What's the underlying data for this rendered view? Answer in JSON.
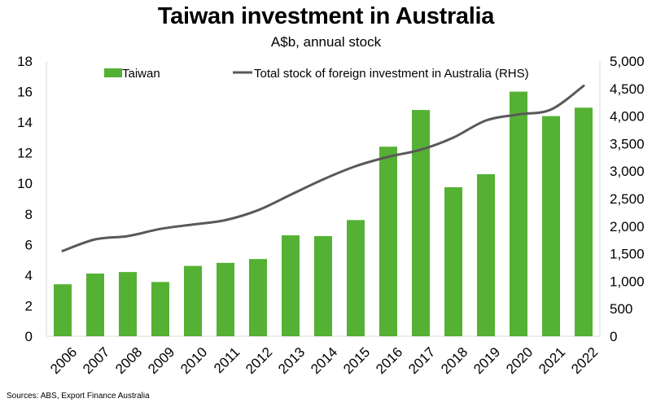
{
  "colors": {
    "bar": "#55b133",
    "line": "#595959",
    "gridline": "#d9d9d9"
  },
  "chart_data": {
    "type": "bar",
    "title": "Taiwan investment in Australia",
    "subtitle": "A$b, annual stock",
    "categories": [
      "2006",
      "2007",
      "2008",
      "2009",
      "2010",
      "2011",
      "2012",
      "2013",
      "2014",
      "2015",
      "2016",
      "2017",
      "2018",
      "2019",
      "2020",
      "2021",
      "2022"
    ],
    "series": [
      {
        "name": "Taiwan",
        "type": "bar",
        "axis": "left",
        "values": [
          3.4,
          4.1,
          4.2,
          3.55,
          4.6,
          4.8,
          5.05,
          6.6,
          6.55,
          7.6,
          12.4,
          14.8,
          9.75,
          10.6,
          16.0,
          14.4,
          14.95
        ]
      },
      {
        "name": "Total stock of foreign investment in Australia (RHS)",
        "type": "line",
        "axis": "right",
        "values": [
          1550,
          1760,
          1820,
          1950,
          2030,
          2110,
          2290,
          2570,
          2850,
          3090,
          3260,
          3390,
          3610,
          3920,
          4030,
          4120,
          4550
        ]
      }
    ],
    "ylim_left": [
      0,
      18
    ],
    "yticks_left": [
      "0",
      "2",
      "4",
      "6",
      "8",
      "10",
      "12",
      "14",
      "16",
      "18"
    ],
    "ylim_right": [
      0,
      5000
    ],
    "yticks_right": [
      "0",
      "500",
      "1,000",
      "1,500",
      "2,000",
      "2,500",
      "3,000",
      "3,500",
      "4,000",
      "4,500",
      "5,000"
    ],
    "grid": false,
    "legend_position": "top"
  },
  "source": "Sources: ABS, Export Finance Australia"
}
